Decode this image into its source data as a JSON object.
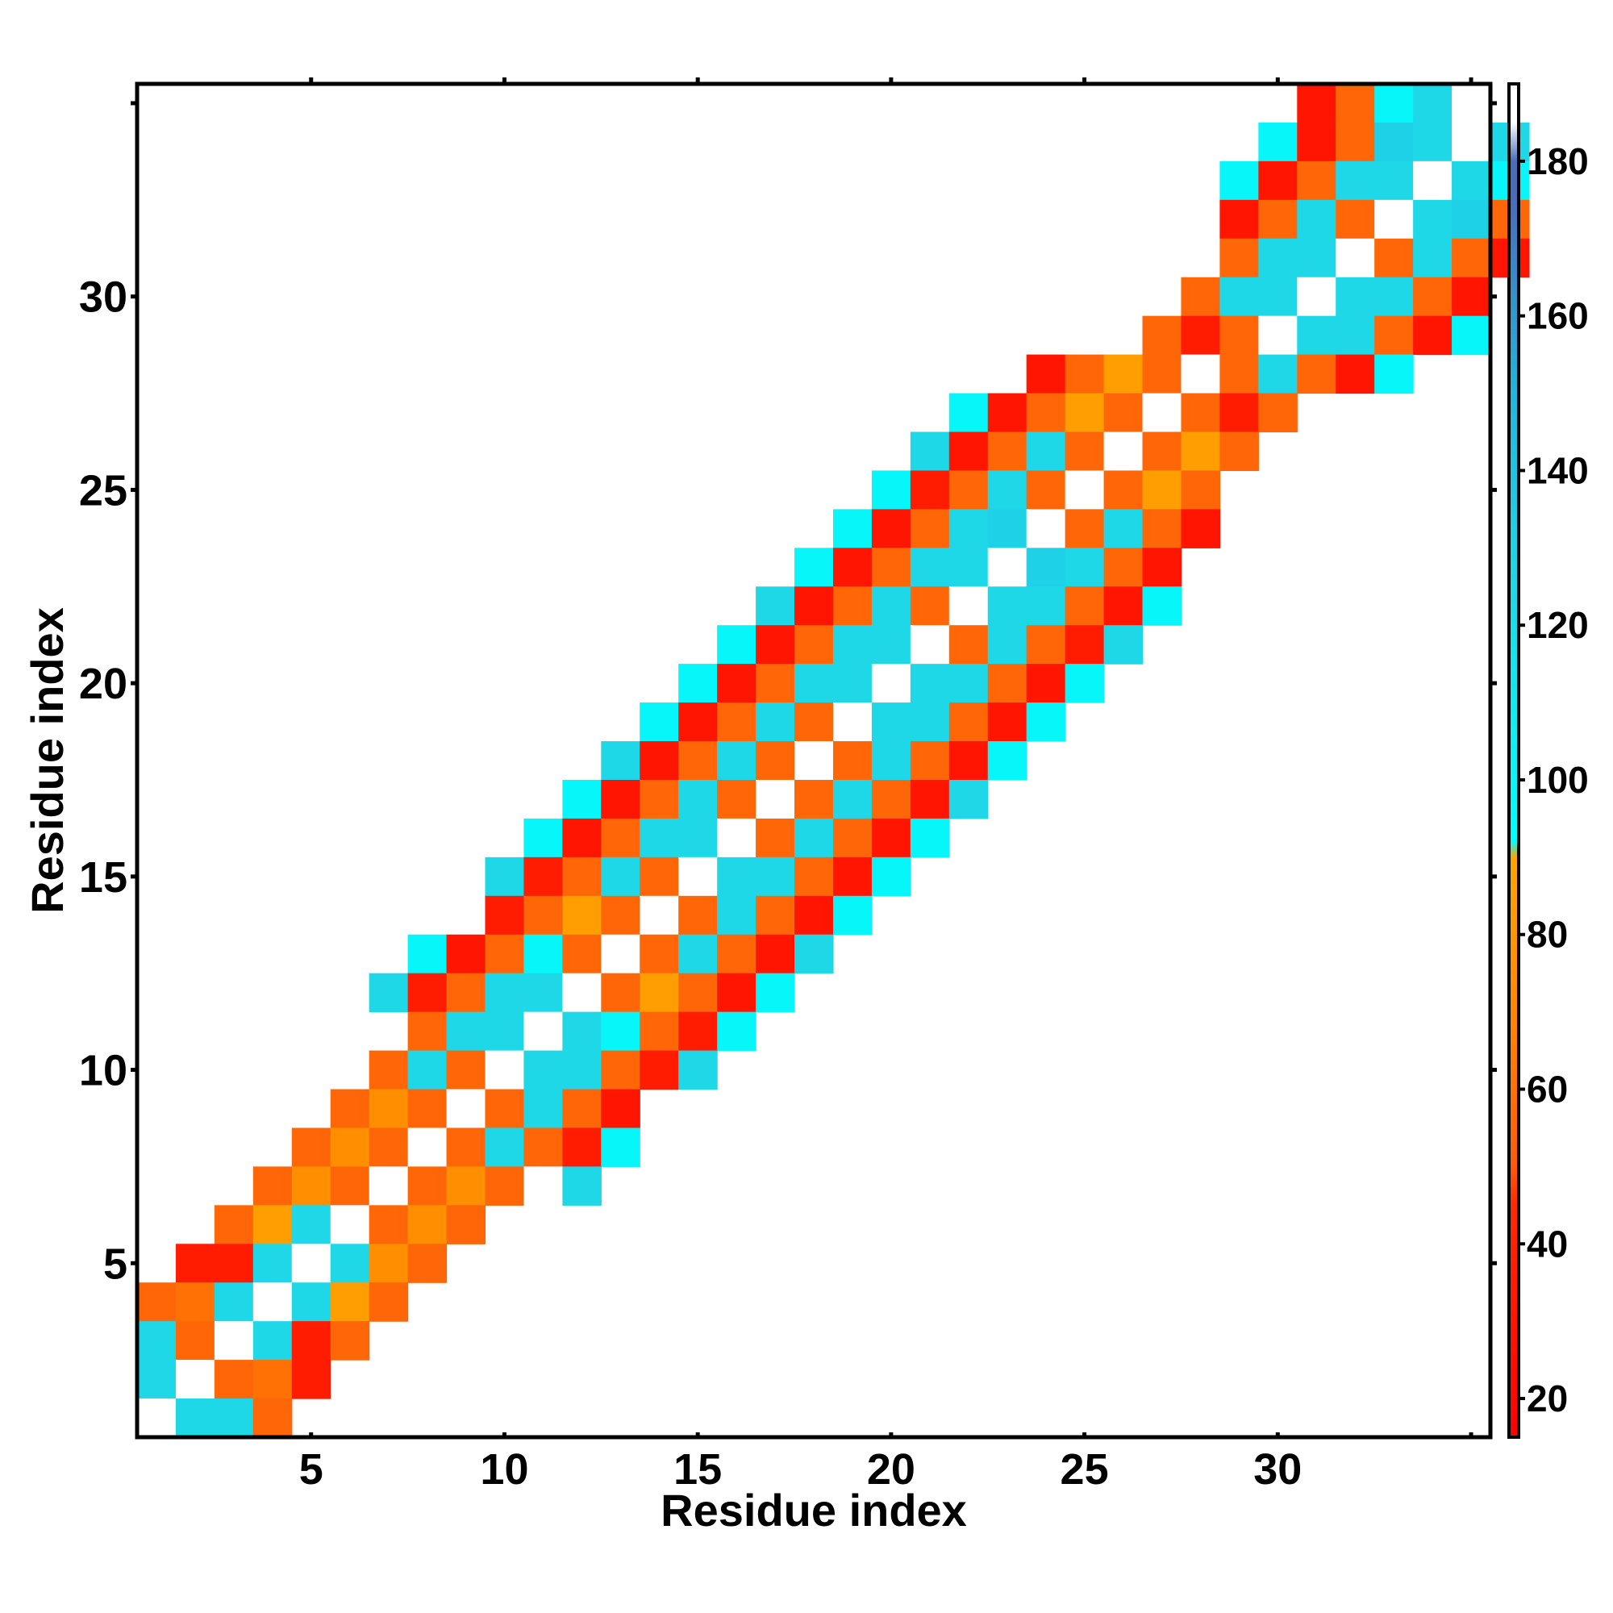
{
  "chart_data": {
    "type": "heatmap",
    "xlabel": "Residue index",
    "ylabel": "Residue index",
    "xlim": [
      0.5,
      35.5
    ],
    "ylim": [
      0.5,
      35.5
    ],
    "x_ticks": [
      5,
      10,
      15,
      20,
      25,
      30
    ],
    "y_ticks": [
      5,
      10,
      15,
      20,
      25,
      30
    ],
    "colorbar": {
      "range": [
        15,
        190
      ],
      "ticks": [
        20,
        40,
        60,
        80,
        100,
        120,
        140,
        160,
        180
      ],
      "stops": [
        {
          "value": 15,
          "color": "#ff0000"
        },
        {
          "value": 45,
          "color": "#ff2a00"
        },
        {
          "value": 50,
          "color": "#ff5a0a"
        },
        {
          "value": 70,
          "color": "#ff8800"
        },
        {
          "value": 90,
          "color": "#ffa500"
        },
        {
          "value": 92,
          "color": "#00ffff"
        },
        {
          "value": 125,
          "color": "#1ed8e8"
        },
        {
          "value": 150,
          "color": "#22b5dd"
        },
        {
          "value": 175,
          "color": "#4a6db8"
        },
        {
          "value": 180,
          "color": "#4a6db8"
        },
        {
          "value": 185,
          "color": "#ffffff"
        },
        {
          "value": 190,
          "color": "#ffffff"
        }
      ]
    },
    "rows": [
      {
        "y": 35,
        "x0": 31,
        "v": [
          30,
          55,
          100,
          125,
          190
        ]
      },
      {
        "y": 34,
        "x0": 30,
        "v": [
          100,
          30,
          55,
          130,
          125,
          190,
          125
        ]
      },
      {
        "y": 33,
        "x0": 29,
        "v": [
          100,
          30,
          55,
          125,
          125,
          190,
          125,
          100
        ]
      },
      {
        "y": 32,
        "x0": 29,
        "v": [
          30,
          55,
          125,
          55,
          190,
          125,
          130,
          55
        ]
      },
      {
        "y": 31,
        "x0": 29,
        "v": [
          55,
          125,
          125,
          190,
          55,
          125,
          55,
          30
        ]
      },
      {
        "y": 30,
        "x0": 28,
        "v": [
          55,
          125,
          125,
          190,
          125,
          125,
          55,
          30
        ]
      },
      {
        "y": 29,
        "x0": 27,
        "v": [
          55,
          35,
          55,
          190,
          125,
          125,
          55,
          30,
          100
        ]
      },
      {
        "y": 28,
        "x0": 24,
        "v": [
          30,
          55,
          85,
          55,
          190,
          55,
          125,
          55,
          30,
          100
        ]
      },
      {
        "y": 27,
        "x0": 22,
        "v": [
          100,
          30,
          55,
          85,
          55,
          190,
          55,
          35,
          55
        ]
      },
      {
        "y": 26,
        "x0": 21,
        "v": [
          125,
          30,
          55,
          125,
          55,
          190,
          55,
          85,
          55
        ]
      },
      {
        "y": 25,
        "x0": 20,
        "v": [
          100,
          35,
          55,
          125,
          55,
          190,
          55,
          85,
          55
        ]
      },
      {
        "y": 24,
        "x0": 19,
        "v": [
          100,
          30,
          55,
          125,
          130,
          190,
          55,
          125,
          55,
          30
        ]
      },
      {
        "y": 23,
        "x0": 18,
        "v": [
          100,
          30,
          55,
          125,
          125,
          190,
          130,
          125,
          55,
          30
        ]
      },
      {
        "y": 22,
        "x0": 17,
        "v": [
          125,
          30,
          55,
          125,
          55,
          190,
          125,
          125,
          55,
          30,
          100
        ]
      },
      {
        "y": 21,
        "x0": 16,
        "v": [
          100,
          30,
          55,
          125,
          125,
          190,
          55,
          125,
          55,
          35,
          125
        ]
      },
      {
        "y": 20,
        "x0": 15,
        "v": [
          100,
          30,
          55,
          125,
          125,
          190,
          125,
          125,
          55,
          30,
          100
        ]
      },
      {
        "y": 19,
        "x0": 14,
        "v": [
          100,
          30,
          55,
          125,
          55,
          190,
          125,
          125,
          55,
          30,
          100
        ]
      },
      {
        "y": 18,
        "x0": 13,
        "v": [
          125,
          30,
          55,
          125,
          55,
          190,
          55,
          125,
          55,
          30,
          100
        ]
      },
      {
        "y": 17,
        "x0": 12,
        "v": [
          100,
          30,
          55,
          125,
          55,
          190,
          55,
          125,
          55,
          30,
          125
        ]
      },
      {
        "y": 16,
        "x0": 11,
        "v": [
          100,
          30,
          55,
          125,
          125,
          190,
          55,
          125,
          55,
          30,
          100
        ]
      },
      {
        "y": 15,
        "x0": 10,
        "v": [
          125,
          35,
          55,
          125,
          55,
          190,
          125,
          125,
          55,
          30,
          100
        ]
      },
      {
        "y": 14,
        "x0": 10,
        "v": [
          35,
          55,
          85,
          55,
          190,
          55,
          125,
          55,
          30,
          100
        ]
      },
      {
        "y": 13,
        "x0": 8,
        "v": [
          100,
          30,
          55,
          100,
          55,
          190,
          55,
          125,
          55,
          30,
          125
        ]
      },
      {
        "y": 12,
        "x0": 7,
        "v": [
          125,
          35,
          55,
          125,
          125,
          190,
          55,
          85,
          55,
          30,
          100
        ]
      },
      {
        "y": 11,
        "x0": 8,
        "v": [
          55,
          125,
          125,
          190,
          125,
          100,
          55,
          35,
          100
        ]
      },
      {
        "y": 10,
        "x0": 7,
        "v": [
          55,
          125,
          55,
          190,
          125,
          125,
          55,
          35,
          125
        ]
      },
      {
        "y": 9,
        "x0": 6,
        "v": [
          55,
          75,
          55,
          190,
          55,
          125,
          55,
          30
        ]
      },
      {
        "y": 8,
        "x0": 5,
        "v": [
          55,
          75,
          55,
          190,
          55,
          125,
          55,
          35,
          100
        ]
      },
      {
        "y": 7,
        "x0": 4,
        "v": [
          55,
          75,
          55,
          190,
          55,
          75,
          55,
          190,
          125
        ]
      },
      {
        "y": 6,
        "x0": 3,
        "v": [
          55,
          85,
          125,
          190,
          55,
          75,
          55
        ]
      },
      {
        "y": 5,
        "x0": 2,
        "v": [
          35,
          35,
          125,
          190,
          125,
          75,
          55
        ]
      },
      {
        "y": 4,
        "x0": 1,
        "v": [
          55,
          60,
          125,
          190,
          125,
          85,
          55
        ]
      },
      {
        "y": 3,
        "x0": 1,
        "v": [
          125,
          55,
          190,
          125,
          35,
          55
        ]
      },
      {
        "y": 2,
        "x0": 1,
        "v": [
          125,
          190,
          55,
          60,
          35
        ]
      },
      {
        "y": 1,
        "x0": 1,
        "v": [
          190,
          125,
          125,
          55
        ]
      }
    ]
  }
}
